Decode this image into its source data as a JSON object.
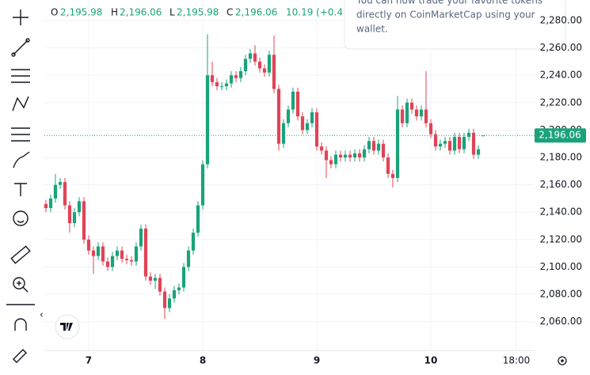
{
  "chart_data": {
    "type": "candlestick",
    "header": {
      "open_label": "O",
      "open": "2,195.98",
      "high_label": "H",
      "high": "2,196.06",
      "low_label": "L",
      "low": "2,195.98",
      "close_label": "C",
      "close": "2,196.06",
      "change": "10.19 (+0.4"
    },
    "tooltip": [
      "You can now trade your favorite tokens",
      "directly on CoinMarketCap using your",
      "wallet."
    ],
    "up_color": "#1aa37a",
    "down_color": "#e04457",
    "grid": true,
    "last_price": {
      "value": 2196.06,
      "label": "2,196.06"
    },
    "x": [
      -9,
      -8,
      -7,
      -6,
      -5,
      -4,
      -3,
      -2,
      -1,
      0,
      1,
      2,
      3,
      4,
      5,
      6,
      7,
      8,
      9,
      10,
      11,
      12,
      13,
      14,
      15,
      16,
      17,
      18,
      19,
      20,
      21,
      22,
      23,
      24,
      25,
      26,
      27,
      28,
      29,
      30,
      31,
      32,
      33,
      34,
      35,
      36,
      37,
      38,
      39,
      40,
      41,
      42,
      43,
      44,
      45,
      46,
      47,
      48,
      49,
      50,
      51,
      52,
      53,
      54,
      55,
      56,
      57,
      58,
      59,
      60,
      61,
      62,
      63,
      64,
      65,
      66,
      67,
      68,
      69,
      70,
      71,
      72,
      73,
      74,
      75,
      76,
      77,
      78,
      79,
      80,
      81,
      82,
      83
    ],
    "open": [
      2146,
      2143,
      2150,
      2160,
      2162,
      2145,
      2132,
      2140,
      2148,
      2120,
      2112,
      2108,
      2115,
      2104,
      2100,
      2108,
      2112,
      2106,
      2105,
      2104,
      2115,
      2128,
      2093,
      2090,
      2092,
      2082,
      2070,
      2077,
      2083,
      2085,
      2100,
      2112,
      2125,
      2145,
      2175,
      2240,
      2235,
      2232,
      2232,
      2234,
      2240,
      2238,
      2243,
      2252,
      2256,
      2250,
      2245,
      2242,
      2255,
      2230,
      2190,
      2205,
      2215,
      2228,
      2210,
      2200,
      2205,
      2213,
      2188,
      2185,
      2178,
      2175,
      2182,
      2180,
      2182,
      2180,
      2183,
      2180,
      2186,
      2192,
      2185,
      2190,
      2180,
      2168,
      2165,
      2215,
      2205,
      2220,
      2215,
      2210,
      2215,
      2205,
      2197,
      2188,
      2190,
      2192,
      2185,
      2195,
      2186,
      2195,
      2198,
      2182,
      2195.98
    ],
    "high": [
      2149,
      2153,
      2168,
      2165,
      2165,
      2148,
      2143,
      2151,
      2151,
      2123,
      2115,
      2118,
      2118,
      2107,
      2111,
      2115,
      2115,
      2109,
      2108,
      2118,
      2131,
      2131,
      2096,
      2095,
      2095,
      2085,
      2080,
      2086,
      2088,
      2103,
      2115,
      2128,
      2148,
      2178,
      2270,
      2250,
      2238,
      2235,
      2237,
      2243,
      2243,
      2246,
      2255,
      2259,
      2262,
      2253,
      2248,
      2258,
      2269,
      2233,
      2208,
      2218,
      2231,
      2231,
      2213,
      2208,
      2216,
      2216,
      2191,
      2188,
      2181,
      2185,
      2185,
      2185,
      2185,
      2186,
      2186,
      2189,
      2195,
      2195,
      2193,
      2193,
      2183,
      2171,
      2225,
      2218,
      2223,
      2223,
      2218,
      2218,
      2243,
      2208,
      2200,
      2193,
      2195,
      2195,
      2198,
      2198,
      2198,
      2201,
      2201,
      2189,
      2196.06
    ],
    "low": [
      2140,
      2140,
      2147,
      2157,
      2142,
      2125,
      2129,
      2137,
      2117,
      2109,
      2095,
      2105,
      2101,
      2097,
      2097,
      2105,
      2103,
      2102,
      2101,
      2101,
      2112,
      2090,
      2087,
      2084,
      2079,
      2062,
      2067,
      2074,
      2080,
      2082,
      2097,
      2109,
      2122,
      2142,
      2172,
      2232,
      2229,
      2229,
      2229,
      2231,
      2235,
      2235,
      2240,
      2249,
      2247,
      2242,
      2239,
      2239,
      2227,
      2185,
      2187,
      2202,
      2212,
      2207,
      2197,
      2197,
      2202,
      2185,
      2182,
      2165,
      2172,
      2172,
      2177,
      2177,
      2177,
      2177,
      2177,
      2177,
      2183,
      2182,
      2182,
      2177,
      2165,
      2158,
      2162,
      2202,
      2202,
      2212,
      2207,
      2207,
      2202,
      2194,
      2185,
      2185,
      2187,
      2182,
      2182,
      2183,
      2183,
      2192,
      2179,
      2179,
      2195.98
    ],
    "close": [
      2143,
      2150,
      2160,
      2162,
      2145,
      2132,
      2140,
      2148,
      2120,
      2112,
      2108,
      2115,
      2104,
      2100,
      2108,
      2112,
      2106,
      2105,
      2104,
      2115,
      2128,
      2093,
      2090,
      2092,
      2082,
      2070,
      2077,
      2083,
      2085,
      2100,
      2112,
      2125,
      2145,
      2175,
      2240,
      2235,
      2232,
      2232,
      2234,
      2240,
      2238,
      2243,
      2252,
      2256,
      2250,
      2245,
      2242,
      2255,
      2230,
      2190,
      2205,
      2215,
      2228,
      2210,
      2200,
      2205,
      2213,
      2188,
      2185,
      2178,
      2175,
      2182,
      2180,
      2182,
      2180,
      2183,
      2180,
      2186,
      2192,
      2185,
      2190,
      2180,
      2168,
      2165,
      2215,
      2205,
      2220,
      2215,
      2210,
      2215,
      2205,
      2197,
      2188,
      2190,
      2192,
      2185,
      2195,
      2186,
      2195,
      2198,
      2182,
      2186,
      2196.06
    ],
    "xlim": [
      -9.33,
      93.83
    ],
    "xticks": [
      {
        "value": 0,
        "label": "7"
      },
      {
        "value": 24,
        "label": "8"
      },
      {
        "value": 48,
        "label": "9"
      },
      {
        "value": 72,
        "label": "10"
      },
      {
        "value": 90,
        "label": "18:00"
      }
    ],
    "ylim": [
      2039,
      2295
    ],
    "yticks": [
      {
        "value": 2060,
        "label": "2,060.00"
      },
      {
        "value": 2080,
        "label": "2,080.00"
      },
      {
        "value": 2100,
        "label": "2,100.00"
      },
      {
        "value": 2120,
        "label": "2,120.00"
      },
      {
        "value": 2140,
        "label": "2,140.00"
      },
      {
        "value": 2160,
        "label": "2,160.00"
      },
      {
        "value": 2180,
        "label": "2,180.00"
      },
      {
        "value": 2200,
        "label": "2,200.00"
      },
      {
        "value": 2220,
        "label": "2,220.00"
      },
      {
        "value": 2240,
        "label": "2,240.00"
      },
      {
        "value": 2260,
        "label": "2,260.00"
      },
      {
        "value": 2280,
        "label": "2,280.00"
      }
    ]
  }
}
